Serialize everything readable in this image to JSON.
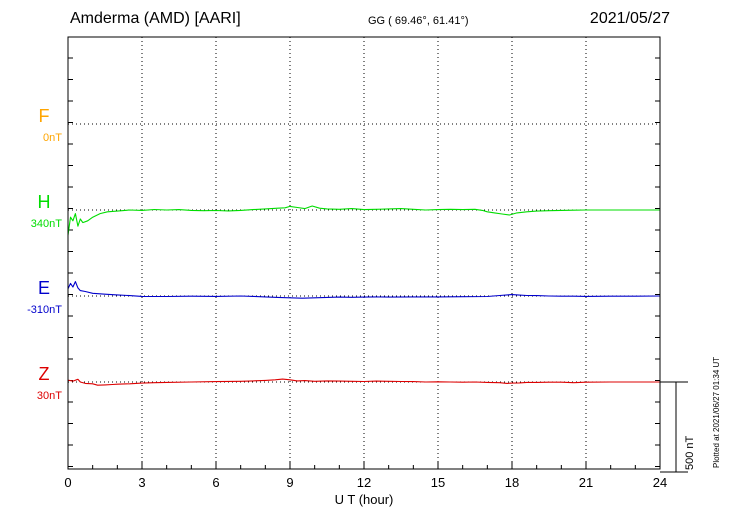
{
  "header": {
    "station": "Amderma (AMD)  [AARI]",
    "coords": "GG ( 69.46°,  61.41°)",
    "date": "2021/05/27"
  },
  "plotted_note": "Plotted at 2021/06/27 01:34 UT",
  "chart_data": {
    "type": "line",
    "xlabel": "U T (hour)",
    "xlim": [
      0,
      24
    ],
    "xticks": [
      "0",
      "3",
      "6",
      "9",
      "12",
      "15",
      "18",
      "21",
      "24"
    ],
    "scale_label": "500 nT",
    "scale_nT": 500,
    "colors": {
      "F": "#ffa500",
      "H": "#00dd00",
      "E": "#0000cc",
      "Z": "#dd0000"
    },
    "series": [
      {
        "name": "F",
        "offset_label": "0nT",
        "values": []
      },
      {
        "name": "H",
        "offset_label": "340nT",
        "values": [
          [
            0,
            -140
          ],
          [
            0.1,
            -40
          ],
          [
            0.2,
            -60
          ],
          [
            0.3,
            -20
          ],
          [
            0.4,
            -90
          ],
          [
            0.5,
            -50
          ],
          [
            0.6,
            -70
          ],
          [
            0.8,
            -60
          ],
          [
            1,
            -40
          ],
          [
            1.3,
            -20
          ],
          [
            1.6,
            -10
          ],
          [
            2,
            -6
          ],
          [
            2.5,
            0
          ],
          [
            3,
            -2
          ],
          [
            3.5,
            3
          ],
          [
            4,
            0
          ],
          [
            4.5,
            2
          ],
          [
            5,
            -2
          ],
          [
            5.5,
            -4
          ],
          [
            6,
            -3
          ],
          [
            6.5,
            -5
          ],
          [
            7,
            -2
          ],
          [
            7.5,
            2
          ],
          [
            8,
            6
          ],
          [
            8.5,
            10
          ],
          [
            8.8,
            12
          ],
          [
            9,
            20
          ],
          [
            9.3,
            14
          ],
          [
            9.6,
            8
          ],
          [
            9.9,
            22
          ],
          [
            10.2,
            10
          ],
          [
            10.5,
            6
          ],
          [
            11,
            4
          ],
          [
            11.5,
            8
          ],
          [
            12,
            2
          ],
          [
            12.5,
            4
          ],
          [
            13,
            6
          ],
          [
            13.5,
            8
          ],
          [
            14,
            4
          ],
          [
            14.5,
            0
          ],
          [
            15,
            2
          ],
          [
            15.5,
            4
          ],
          [
            16,
            2
          ],
          [
            16.5,
            4
          ],
          [
            16.8,
            -2
          ],
          [
            17,
            -10
          ],
          [
            17.3,
            -16
          ],
          [
            17.6,
            -22
          ],
          [
            17.9,
            -28
          ],
          [
            18.2,
            -16
          ],
          [
            18.6,
            -10
          ],
          [
            19,
            -6
          ],
          [
            19.5,
            -4
          ],
          [
            20,
            -2
          ],
          [
            20.5,
            -1
          ],
          [
            21,
            0
          ],
          [
            22,
            0
          ],
          [
            23,
            0
          ],
          [
            24,
            0
          ]
        ]
      },
      {
        "name": "E",
        "offset_label": "-310nT",
        "values": [
          [
            0,
            40
          ],
          [
            0.1,
            70
          ],
          [
            0.2,
            50
          ],
          [
            0.3,
            80
          ],
          [
            0.4,
            45
          ],
          [
            0.5,
            30
          ],
          [
            0.7,
            25
          ],
          [
            1,
            15
          ],
          [
            1.5,
            10
          ],
          [
            2,
            6
          ],
          [
            2.5,
            2
          ],
          [
            3,
            -2
          ],
          [
            4,
            -3
          ],
          [
            5,
            -1
          ],
          [
            6,
            -2
          ],
          [
            7,
            0
          ],
          [
            7.5,
            -2
          ],
          [
            8,
            -5
          ],
          [
            8.5,
            -8
          ],
          [
            9,
            -10
          ],
          [
            9.5,
            -12
          ],
          [
            10,
            -10
          ],
          [
            10.5,
            -8
          ],
          [
            11,
            -6
          ],
          [
            11.5,
            -7
          ],
          [
            12,
            -6
          ],
          [
            12.5,
            -5
          ],
          [
            13,
            -6
          ],
          [
            14,
            -5
          ],
          [
            15,
            -5
          ],
          [
            16,
            -4
          ],
          [
            17,
            -3
          ],
          [
            17.5,
            3
          ],
          [
            17.8,
            6
          ],
          [
            18,
            8
          ],
          [
            18.3,
            5
          ],
          [
            18.6,
            3
          ],
          [
            19,
            2
          ],
          [
            19.5,
            0
          ],
          [
            20,
            -1
          ],
          [
            20.5,
            -1
          ],
          [
            21,
            -2
          ],
          [
            22,
            -1
          ],
          [
            23,
            -1
          ],
          [
            24,
            0
          ]
        ]
      },
      {
        "name": "Z",
        "offset_label": "30nT",
        "values": [
          [
            0,
            10
          ],
          [
            0.2,
            5
          ],
          [
            0.4,
            15
          ],
          [
            0.5,
            0
          ],
          [
            0.7,
            -8
          ],
          [
            1,
            -10
          ],
          [
            1.2,
            -18
          ],
          [
            1.5,
            -16
          ],
          [
            1.8,
            -14
          ],
          [
            2,
            -12
          ],
          [
            2.5,
            -10
          ],
          [
            3,
            -6
          ],
          [
            3.5,
            -4
          ],
          [
            4,
            -2
          ],
          [
            5,
            0
          ],
          [
            6,
            2
          ],
          [
            7,
            4
          ],
          [
            7.5,
            6
          ],
          [
            8,
            9
          ],
          [
            8.4,
            12
          ],
          [
            8.7,
            16
          ],
          [
            9,
            12
          ],
          [
            9.3,
            6
          ],
          [
            9.6,
            8
          ],
          [
            10,
            4
          ],
          [
            10.5,
            6
          ],
          [
            11,
            5
          ],
          [
            11.5,
            4
          ],
          [
            12,
            3
          ],
          [
            12.5,
            5
          ],
          [
            13,
            4
          ],
          [
            13.5,
            3
          ],
          [
            14,
            2
          ],
          [
            14.5,
            0
          ],
          [
            15,
            1
          ],
          [
            15.5,
            0
          ],
          [
            16,
            -1
          ],
          [
            16.5,
            0
          ],
          [
            17,
            -2
          ],
          [
            17.5,
            -4
          ],
          [
            17.8,
            -8
          ],
          [
            18,
            -6
          ],
          [
            18.3,
            -5
          ],
          [
            18.6,
            -2
          ],
          [
            19,
            -2
          ],
          [
            19.5,
            -1
          ],
          [
            20,
            -1
          ],
          [
            20.5,
            -4
          ],
          [
            21,
            -1
          ],
          [
            22,
            0
          ],
          [
            23,
            0
          ],
          [
            24,
            0
          ]
        ]
      }
    ]
  }
}
